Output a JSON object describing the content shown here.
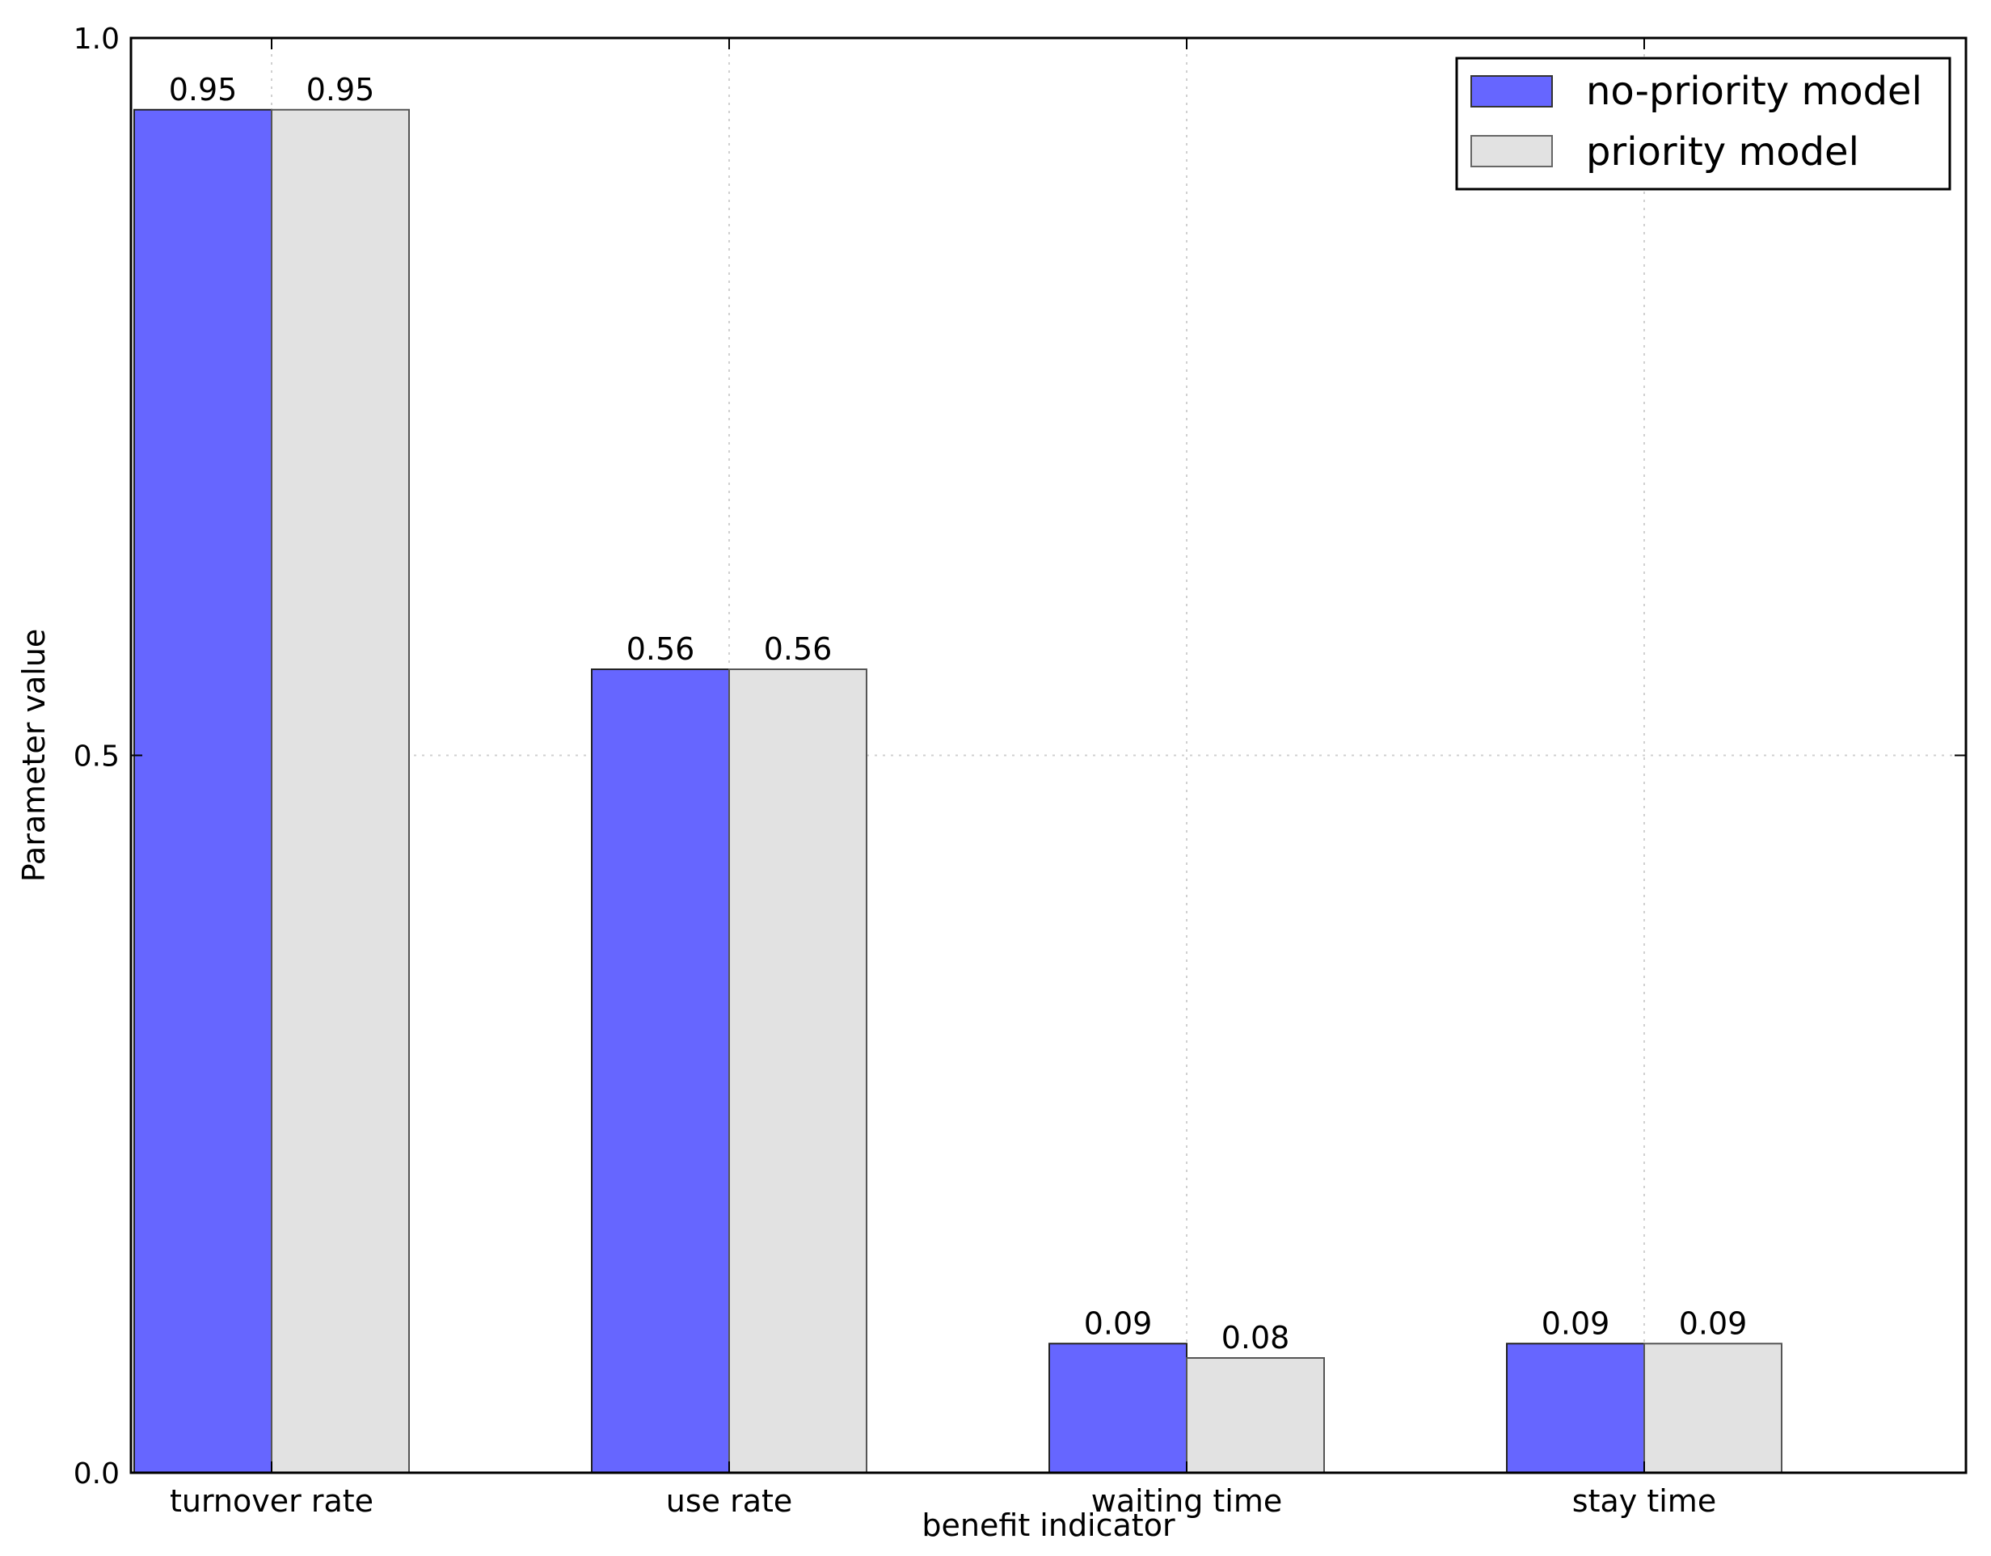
{
  "chart_data": {
    "type": "bar",
    "title": "",
    "xlabel": "benefit indicator",
    "ylabel": "Parameter value",
    "ylim": [
      0.0,
      1.0
    ],
    "yticks": [
      "0.0",
      "0.5",
      "1.0"
    ],
    "ytick_values": [
      0.0,
      0.5,
      1.0
    ],
    "categories": [
      "turnover rate",
      "use rate",
      "waiting time",
      "stay time"
    ],
    "series": [
      {
        "name": "no-priority model",
        "color": "#6666ff",
        "values": [
          0.95,
          0.56,
          0.09,
          0.09
        ],
        "labels": [
          "0.95",
          "0.56",
          "0.09",
          "0.09"
        ]
      },
      {
        "name": "priority model",
        "color": "#e2e2e2",
        "values": [
          0.95,
          0.56,
          0.08,
          0.09
        ],
        "labels": [
          "0.95",
          "0.56",
          "0.08",
          "0.09"
        ]
      }
    ],
    "grid": true,
    "legend_position": "top-right"
  }
}
